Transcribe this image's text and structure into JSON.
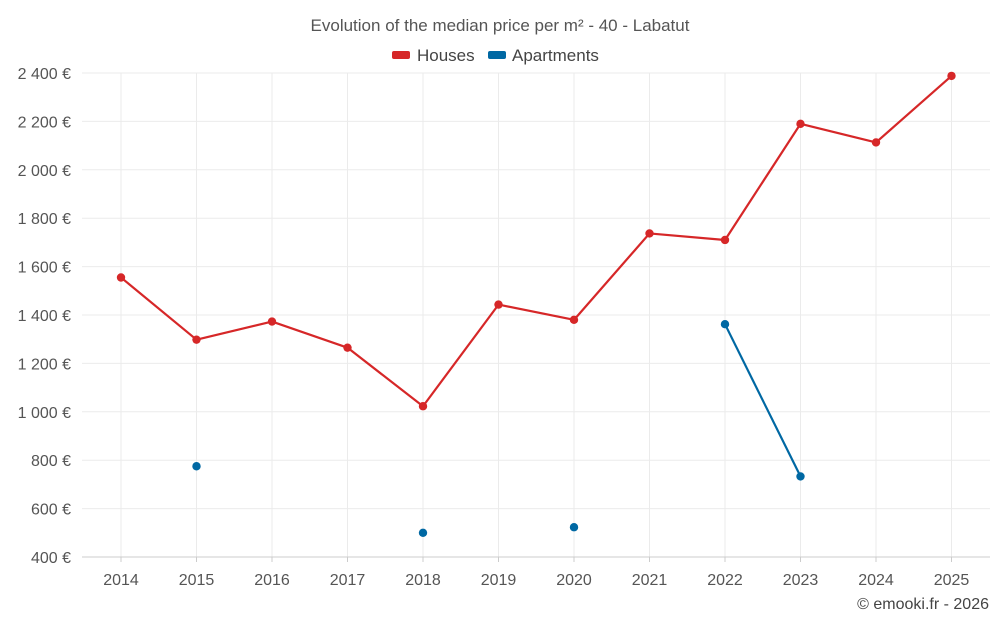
{
  "chart_data": {
    "type": "line",
    "title": "Evolution of the median price per m² - 40 - Labatut",
    "xlabel": "",
    "ylabel": "",
    "categories": [
      "2014",
      "2015",
      "2016",
      "2017",
      "2018",
      "2019",
      "2020",
      "2021",
      "2022",
      "2023",
      "2024",
      "2025"
    ],
    "ylim": [
      400,
      2400
    ],
    "yticks": [
      400,
      600,
      800,
      1000,
      1200,
      1400,
      1600,
      1800,
      2000,
      2200,
      2400
    ],
    "ytick_labels": [
      "400 €",
      "600 €",
      "800 €",
      "1 000 €",
      "1 200 €",
      "1 400 €",
      "1 600 €",
      "1 800 €",
      "2 000 €",
      "2 200 €",
      "2 400 €"
    ],
    "grid": true,
    "legend_position": "top-center",
    "series": [
      {
        "name": "Houses",
        "color": "#d62728",
        "values": [
          1555,
          1298,
          1373,
          1265,
          1023,
          1443,
          1380,
          1737,
          1710,
          2190,
          2113,
          2388
        ]
      },
      {
        "name": "Apartments",
        "color": "#0068a3",
        "values": [
          null,
          775,
          null,
          null,
          500,
          null,
          523,
          null,
          1362,
          733,
          null,
          null
        ]
      }
    ]
  },
  "credit": "© emooki.fr - 2026"
}
